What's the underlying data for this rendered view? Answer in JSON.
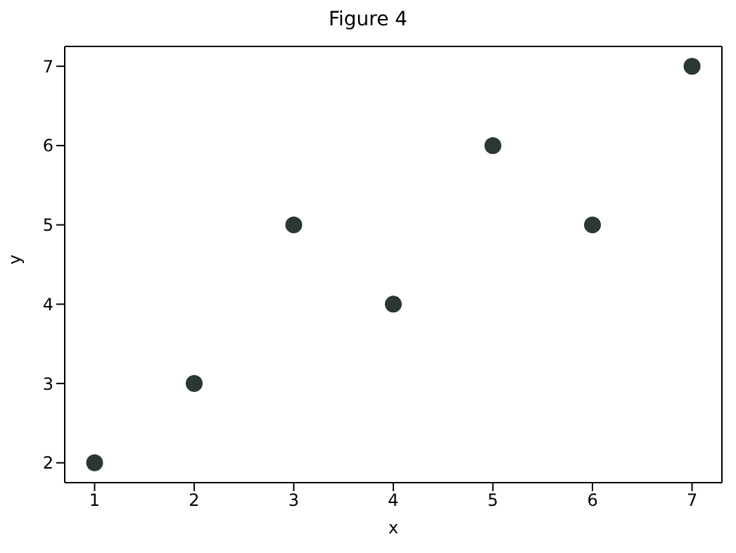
{
  "chart_data": {
    "type": "scatter",
    "title": "Figure 4",
    "xlabel": "x",
    "ylabel": "y",
    "x": [
      1,
      2,
      3,
      4,
      5,
      6,
      7
    ],
    "series": [
      {
        "color": "#2b3832",
        "values": [
          2,
          3,
          5,
          4,
          6,
          5,
          7
        ]
      }
    ],
    "xlim": [
      0.7,
      7.3
    ],
    "xticks": [
      1,
      2,
      3,
      4,
      5,
      6,
      7
    ],
    "ylim": [
      1.75,
      7.25
    ],
    "yticks": [
      2,
      3,
      4,
      5,
      6,
      7
    ],
    "marker": "circle",
    "grid": false
  }
}
